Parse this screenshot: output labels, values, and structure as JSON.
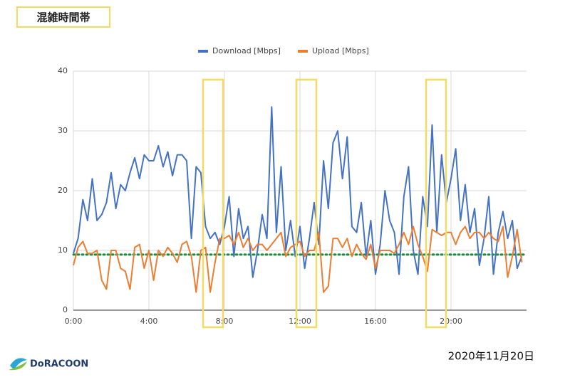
{
  "header": {
    "title": "混雑時間帯"
  },
  "chart_data": {
    "type": "line",
    "x": [
      0,
      0.25,
      0.5,
      0.75,
      1,
      1.25,
      1.5,
      1.75,
      2,
      2.25,
      2.5,
      2.75,
      3,
      3.25,
      3.5,
      3.75,
      4,
      4.25,
      4.5,
      4.75,
      5,
      5.25,
      5.5,
      5.75,
      6,
      6.25,
      6.5,
      6.75,
      7,
      7.25,
      7.5,
      7.75,
      8,
      8.25,
      8.5,
      8.75,
      9,
      9.25,
      9.5,
      9.75,
      10,
      10.25,
      10.5,
      10.75,
      11,
      11.25,
      11.5,
      11.75,
      12,
      12.25,
      12.5,
      12.75,
      13,
      13.25,
      13.5,
      13.75,
      14,
      14.25,
      14.5,
      14.75,
      15,
      15.25,
      15.5,
      15.75,
      16,
      16.25,
      16.5,
      16.75,
      17,
      17.25,
      17.5,
      17.75,
      18,
      18.25,
      18.5,
      18.75,
      19,
      19.25,
      19.5,
      19.75,
      20,
      20.25,
      20.5,
      20.75,
      21,
      21.25,
      21.5,
      21.75,
      22,
      22.25,
      22.5,
      22.75,
      23,
      23.25,
      23.5,
      23.75
    ],
    "series": [
      {
        "name": "Download [Mbps]",
        "color": "#4472c4",
        "values": [
          9.5,
          12,
          18.5,
          15,
          22,
          15,
          16,
          18,
          23,
          17,
          21,
          20,
          23,
          25.5,
          22,
          26,
          25,
          25,
          27.5,
          24,
          26.5,
          22.5,
          26,
          26,
          25,
          12,
          24,
          23,
          14,
          12,
          13,
          11,
          14,
          19,
          9,
          17,
          12,
          14,
          5.5,
          10,
          16,
          12,
          34,
          13,
          24,
          10,
          15,
          9,
          14,
          7,
          12,
          18,
          11,
          25,
          17,
          28,
          30,
          22,
          29,
          14,
          13,
          18,
          9,
          15,
          6,
          11,
          20,
          15,
          13,
          6,
          19,
          24,
          10,
          6,
          19,
          14,
          31,
          13,
          26,
          18,
          22,
          27,
          15,
          21,
          13,
          17,
          7.5,
          12,
          19,
          6,
          13,
          16.5,
          12,
          15,
          7,
          9
        ]
      },
      {
        "name": "Upload [Mbps]",
        "color": "#ed7d31",
        "values": [
          7.5,
          10.5,
          11.5,
          9.5,
          9.5,
          10,
          5,
          3.5,
          10,
          10,
          7,
          6.5,
          3.5,
          10.5,
          11,
          7,
          10,
          5,
          10,
          9,
          10.5,
          9.5,
          8,
          11,
          11.5,
          9,
          3,
          10,
          10.5,
          3,
          8,
          12,
          12,
          12.5,
          11,
          13,
          10.5,
          12,
          10,
          11,
          11,
          10,
          11,
          12,
          13,
          9,
          10.5,
          11,
          11.5,
          9,
          10,
          10,
          13,
          3,
          4,
          12,
          12,
          10.5,
          12,
          9,
          11,
          9.5,
          8.5,
          11,
          7,
          10,
          10,
          10,
          9.5,
          11,
          13,
          11,
          14,
          11,
          9,
          6.5,
          13.5,
          13,
          12.5,
          13,
          13,
          11,
          13,
          14,
          12,
          13,
          13,
          12,
          13,
          12,
          11.5,
          14,
          5.5,
          9,
          13.5,
          8
        ]
      }
    ],
    "xlim": [
      0,
      24
    ],
    "xticks": [
      {
        "value": 0,
        "label": "0:00"
      },
      {
        "value": 4,
        "label": "4:00"
      },
      {
        "value": 8,
        "label": "8:00"
      },
      {
        "value": 12,
        "label": "12:00"
      },
      {
        "value": 16,
        "label": "16:00"
      },
      {
        "value": 20,
        "label": "20:00"
      }
    ],
    "ylim": [
      0,
      40
    ],
    "yticks": [
      0,
      10,
      20,
      30,
      40
    ],
    "grid": true,
    "reference_line": {
      "value": 9.3,
      "color": "#1e8a3c"
    },
    "legend": "top"
  },
  "footer": {
    "date": "2020年11月20日",
    "logo": "DoRACOON"
  }
}
